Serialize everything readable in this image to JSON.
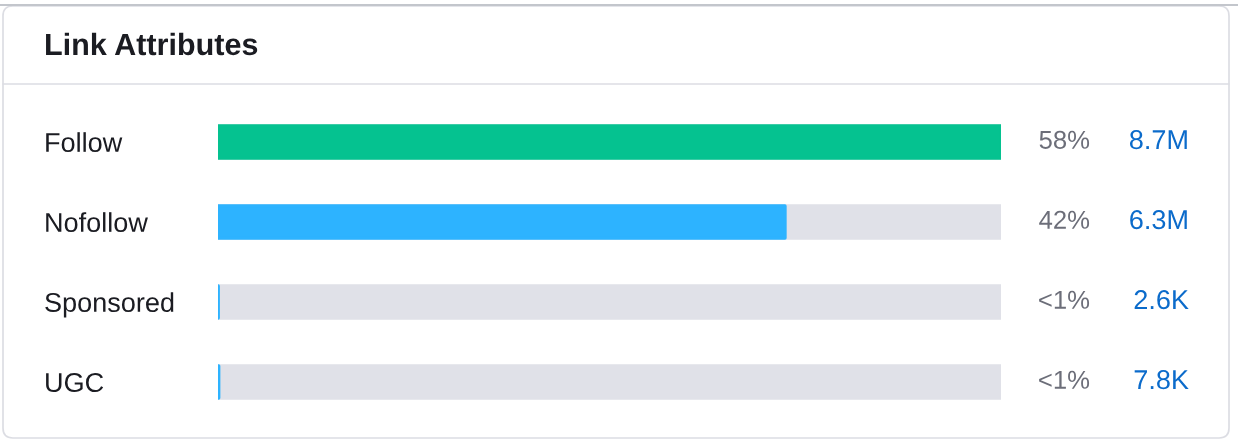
{
  "chart_data": {
    "type": "bar",
    "orientation": "horizontal",
    "title": "Link Attributes",
    "categories": [
      "Follow",
      "Nofollow",
      "Sponsored",
      "UGC"
    ],
    "values": [
      8700000,
      6300000,
      2600,
      7800
    ],
    "colors": [
      "#05c290",
      "#2db3ff",
      "#2db3ff",
      "#2db3ff"
    ],
    "value_labels": [
      "8.7M",
      "6.3M",
      "2.6K",
      "7.8K"
    ],
    "annotations": [
      "58%",
      "42%",
      "<1%",
      "<1%"
    ],
    "tick_labels": "y"
  }
}
